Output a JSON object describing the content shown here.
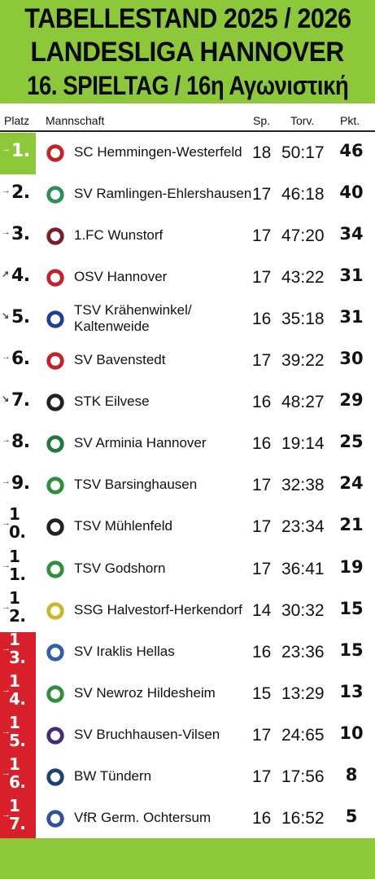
{
  "header": {
    "line1": "TABELLESTAND 2025 / 2026",
    "line2": "LANDESLIGA HANNOVER",
    "line3": "16. SPIELTAG / 16η Αγωνιστική"
  },
  "columns": {
    "platz": "Platz",
    "mannschaft": "Mannschaft",
    "sp": "Sp.",
    "torv": "Torv.",
    "pkt": "Pkt."
  },
  "colors": {
    "accent_green": "#8cc83a",
    "relegation_red": "#d9202a"
  },
  "rows": [
    {
      "rank": "1.",
      "trend": "→",
      "zone": "promotion",
      "team": "SC Hemmingen-Westerfeld",
      "sp": "18",
      "torv": "50:17",
      "pkt": "46",
      "logo": "sc-hemmingen-crest-icon",
      "logo_color": "#c8202a"
    },
    {
      "rank": "2.",
      "trend": "→",
      "zone": "none",
      "team": "SV Ramlingen-Ehlershausen",
      "sp": "17",
      "torv": "46:18",
      "pkt": "40",
      "logo": "sv-ramlingen-crest-icon",
      "logo_color": "#2f8f5a"
    },
    {
      "rank": "3.",
      "trend": "→",
      "zone": "none",
      "team": "1.FC Wunstorf",
      "sp": "17",
      "torv": "47:20",
      "pkt": "34",
      "logo": "fc-wunstorf-crest-icon",
      "logo_color": "#7a1f2a"
    },
    {
      "rank": "4.",
      "trend": "↗",
      "zone": "none",
      "team": "OSV Hannover",
      "sp": "17",
      "torv": "43:22",
      "pkt": "31",
      "logo": "osv-hannover-crest-icon",
      "logo_color": "#c8202a"
    },
    {
      "rank": "5.",
      "trend": "↘",
      "zone": "none",
      "team": "TSV Krähenwinkel/ Kaltenweide",
      "sp": "16",
      "torv": "35:18",
      "pkt": "31",
      "logo": "tsv-kraehenwinkel-crest-icon",
      "logo_color": "#1f3f9a"
    },
    {
      "rank": "6.",
      "trend": "→",
      "zone": "none",
      "team": "SV Bavenstedt",
      "sp": "17",
      "torv": "39:22",
      "pkt": "30",
      "logo": "sv-bavenstedt-crest-icon",
      "logo_color": "#c8202a"
    },
    {
      "rank": "7.",
      "trend": "↘",
      "zone": "none",
      "team": "STK Eilvese",
      "sp": "16",
      "torv": "48:27",
      "pkt": "29",
      "logo": "stk-eilvese-crest-icon",
      "logo_color": "#222222"
    },
    {
      "rank": "8.",
      "trend": "→",
      "zone": "none",
      "team": "SV Arminia Hannover",
      "sp": "16",
      "torv": "19:14",
      "pkt": "25",
      "logo": "sv-arminia-crest-icon",
      "logo_color": "#1f7a3a"
    },
    {
      "rank": "9.",
      "trend": "→",
      "zone": "none",
      "team": "TSV Barsinghausen",
      "sp": "17",
      "torv": "32:38",
      "pkt": "24",
      "logo": "tsv-barsinghausen-crest-icon",
      "logo_color": "#2f8f3a"
    },
    {
      "rank": "10.",
      "trend": "→",
      "zone": "none",
      "team": "TSV Mühlenfeld",
      "sp": "17",
      "torv": "23:34",
      "pkt": "21",
      "logo": "tsv-muehlenfeld-crest-icon",
      "logo_color": "#222222"
    },
    {
      "rank": "11.",
      "trend": "→",
      "zone": "none",
      "team": "TSV Godshorn",
      "sp": "17",
      "torv": "36:41",
      "pkt": "19",
      "logo": "tsv-godshorn-crest-icon",
      "logo_color": "#2f8f3a"
    },
    {
      "rank": "12.",
      "trend": "→",
      "zone": "none",
      "team": "SSG Halvestorf-Herkendorf",
      "sp": "14",
      "torv": "30:32",
      "pkt": "15",
      "logo": "ssg-halvestorf-crest-icon",
      "logo_color": "#c8b82a"
    },
    {
      "rank": "13.",
      "trend": "→",
      "zone": "relegation",
      "team": "SV Iraklis Hellas",
      "sp": "16",
      "torv": "23:36",
      "pkt": "15",
      "logo": "sv-iraklis-crest-icon",
      "logo_color": "#2f5fb0"
    },
    {
      "rank": "14.",
      "trend": "→",
      "zone": "relegation",
      "team": "SV Newroz Hildesheim",
      "sp": "15",
      "torv": "13:29",
      "pkt": "13",
      "logo": "sv-newroz-crest-icon",
      "logo_color": "#2f8f3a"
    },
    {
      "rank": "15.",
      "trend": "→",
      "zone": "relegation",
      "team": "SV Bruchhausen-Vilsen",
      "sp": "17",
      "torv": "24:65",
      "pkt": "10",
      "logo": "sv-bruchhausen-crest-icon",
      "logo_color": "#4a2a7a"
    },
    {
      "rank": "16.",
      "trend": "→",
      "zone": "relegation",
      "team": "BW Tündern",
      "sp": "17",
      "torv": "17:56",
      "pkt": "8",
      "logo": "bw-tuendern-crest-icon",
      "logo_color": "#1f3f7a"
    },
    {
      "rank": "17.",
      "trend": "→",
      "zone": "relegation",
      "team": "VfR Germ. Ochtersum",
      "sp": "16",
      "torv": "16:52",
      "pkt": "5",
      "logo": "vfr-ochtersum-crest-icon",
      "logo_color": "#2f4fa0"
    }
  ]
}
